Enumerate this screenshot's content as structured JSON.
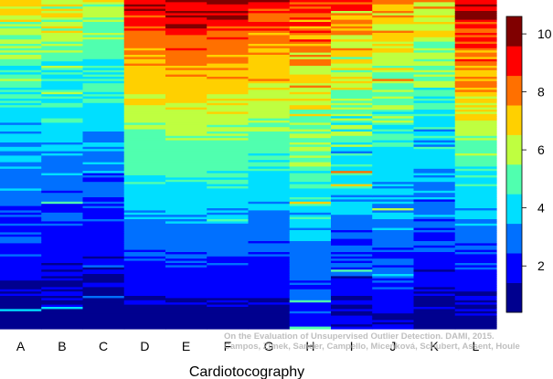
{
  "chart_data": {
    "type": "heatmap",
    "title": "",
    "xlabel": "Cardiotocography",
    "ylabel": "",
    "columns": [
      "A",
      "B",
      "C",
      "D",
      "E",
      "F",
      "G",
      "H",
      "I",
      "J",
      "K",
      "L"
    ],
    "colorbar": {
      "min": 0.4,
      "max": 10.6,
      "ticks": [
        2,
        4,
        6,
        8,
        10
      ]
    },
    "rows": 150,
    "column_profiles": [
      {
        "column": "A",
        "top": 6.5,
        "bottom": 0.8,
        "noise": 1.8
      },
      {
        "column": "B",
        "top": 6.5,
        "bottom": 0.8,
        "noise": 1.8
      },
      {
        "column": "C",
        "top": 6.0,
        "bottom": 0.8,
        "noise": 1.5
      },
      {
        "column": "D",
        "top": 9.6,
        "bottom": 0.8,
        "noise": 1.0
      },
      {
        "column": "E",
        "top": 10.0,
        "bottom": 0.8,
        "noise": 0.8
      },
      {
        "column": "F",
        "top": 9.8,
        "bottom": 0.8,
        "noise": 1.0
      },
      {
        "column": "G",
        "top": 9.2,
        "bottom": 0.8,
        "noise": 1.2
      },
      {
        "column": "H",
        "top": 9.0,
        "bottom": 1.8,
        "noise": 2.5
      },
      {
        "column": "I",
        "top": 8.0,
        "bottom": 1.0,
        "noise": 3.0
      },
      {
        "column": "J",
        "top": 7.5,
        "bottom": 1.5,
        "noise": 2.0
      },
      {
        "column": "K",
        "top": 7.0,
        "bottom": 0.8,
        "noise": 2.0
      },
      {
        "column": "L",
        "top": 10.0,
        "bottom": 0.8,
        "noise": 1.8
      }
    ]
  },
  "watermark": {
    "line1": "On the Evaluation of Unsupervised Outlier Detection. DAMI, 2015.",
    "line2": "Campos, Zimek, Sander, Campello, Micenková, Schubert, Assent, Houle"
  }
}
